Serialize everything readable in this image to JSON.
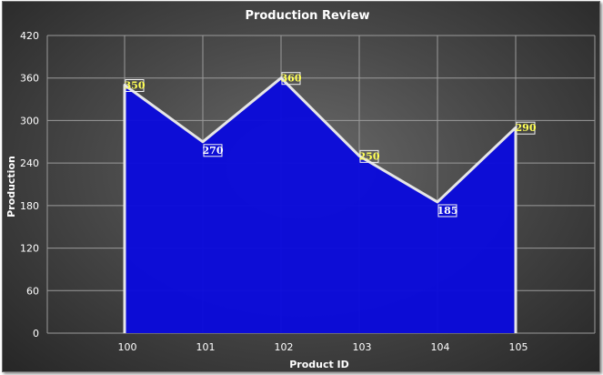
{
  "chart_data": {
    "type": "area",
    "title": "Production Review",
    "xlabel": "Product ID",
    "ylabel": "Production",
    "categories": [
      "100",
      "101",
      "102",
      "103",
      "104",
      "105"
    ],
    "values": [
      350,
      270,
      360,
      250,
      185,
      290
    ],
    "ylim": [
      0,
      420
    ],
    "yticks": [
      0,
      60,
      120,
      180,
      240,
      300,
      360,
      420
    ],
    "grid": true,
    "legend": "none",
    "colors": {
      "area_fill": "#0a0adc",
      "area_line": "#e6e6e6",
      "grid": "#9a9a9a",
      "label_box": "#f2f2f2",
      "label_text_dark": "#ffff55",
      "label_text_light": "#ffffff"
    }
  }
}
